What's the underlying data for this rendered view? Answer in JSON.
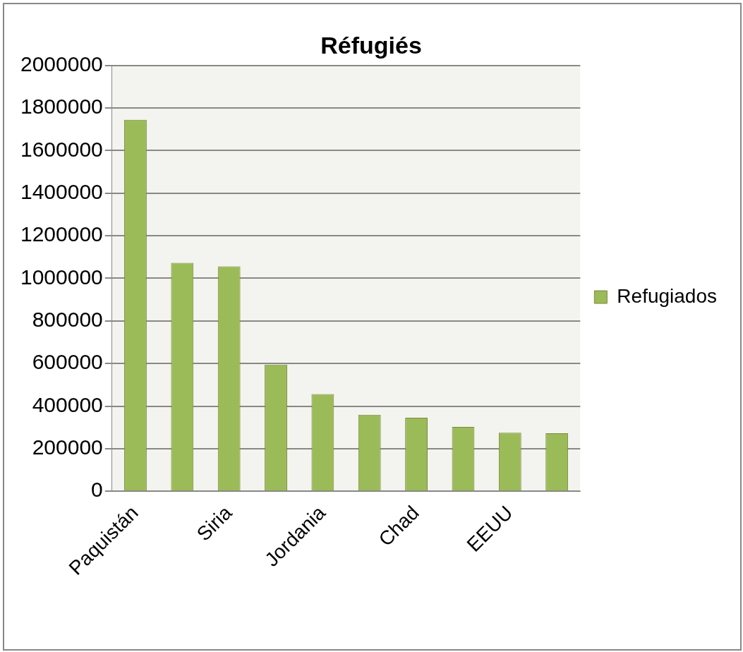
{
  "chart_data": {
    "type": "bar",
    "title": "Réfugiés",
    "categories": [
      "Paquistán",
      null,
      "Siria",
      null,
      "Jordania",
      null,
      "Chad",
      null,
      "EEUU",
      null
    ],
    "series": [
      {
        "name": "Refugiados",
        "color": "#9bbb59",
        "values": [
          1745000,
          1073000,
          1056000,
          595000,
          456000,
          359000,
          345000,
          302000,
          275000,
          272000
        ]
      }
    ],
    "ylim": [
      0,
      2000000
    ],
    "yticks": [
      0,
      200000,
      400000,
      600000,
      800000,
      1000000,
      1200000,
      1400000,
      1600000,
      1800000,
      2000000
    ],
    "grid": "y",
    "legend": "right"
  }
}
